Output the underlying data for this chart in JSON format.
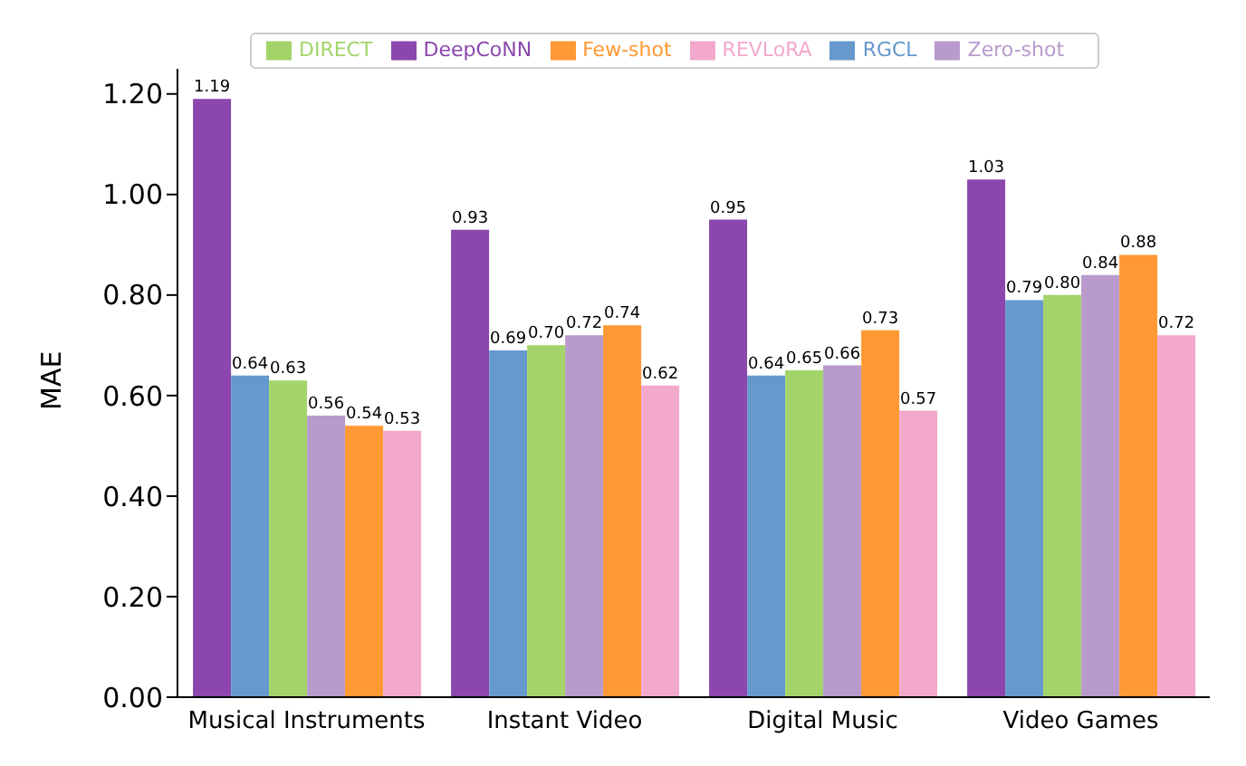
{
  "chart_data": {
    "type": "bar",
    "ylabel": "MAE",
    "categories": [
      "Musical Instruments",
      "Instant Video",
      "Digital Music",
      "Video Games"
    ],
    "series": [
      {
        "name": "DeepCoNN",
        "color": "#8b47ad",
        "values": [
          1.19,
          0.93,
          0.95,
          1.03
        ],
        "value_labels": [
          "1.19",
          "0.93",
          "0.95",
          "1.03"
        ]
      },
      {
        "name": "RGCL",
        "color": "#6699cc",
        "values": [
          0.64,
          0.69,
          0.64,
          0.79
        ],
        "value_labels": [
          "0.64",
          "0.69",
          "0.64",
          "0.79"
        ]
      },
      {
        "name": "DIRECT",
        "color": "#a3d46a",
        "values": [
          0.63,
          0.7,
          0.65,
          0.8
        ],
        "value_labels": [
          "0.63",
          "0.70",
          "0.65",
          "0.80"
        ]
      },
      {
        "name": "Zero-shot",
        "color": "#b89acc",
        "values": [
          0.56,
          0.72,
          0.66,
          0.84
        ],
        "value_labels": [
          "0.56",
          "0.72",
          "0.66",
          "0.84"
        ]
      },
      {
        "name": "Few-shot",
        "color": "#ff9933",
        "values": [
          0.54,
          0.74,
          0.73,
          0.88
        ],
        "value_labels": [
          "0.54",
          "0.74",
          "0.73",
          "0.88"
        ]
      },
      {
        "name": "REVLoRA",
        "color": "#f2a9cc",
        "values": [
          0.53,
          0.62,
          0.57,
          0.72
        ],
        "value_labels": [
          "0.53",
          "0.62",
          "0.57",
          "0.72"
        ]
      }
    ],
    "ylim": [
      0,
      1.25
    ],
    "yticks": [
      {
        "value": 0,
        "label": "0.00"
      },
      {
        "value": 0.2,
        "label": "0.20"
      },
      {
        "value": 0.4,
        "label": "0.40"
      },
      {
        "value": 0.6,
        "label": "0.60"
      },
      {
        "value": 0.8,
        "label": "0.80"
      },
      {
        "value": 1.0,
        "label": "1.00"
      },
      {
        "value": 1.2,
        "label": "1.20"
      }
    ],
    "grid": false,
    "legend": "top"
  }
}
